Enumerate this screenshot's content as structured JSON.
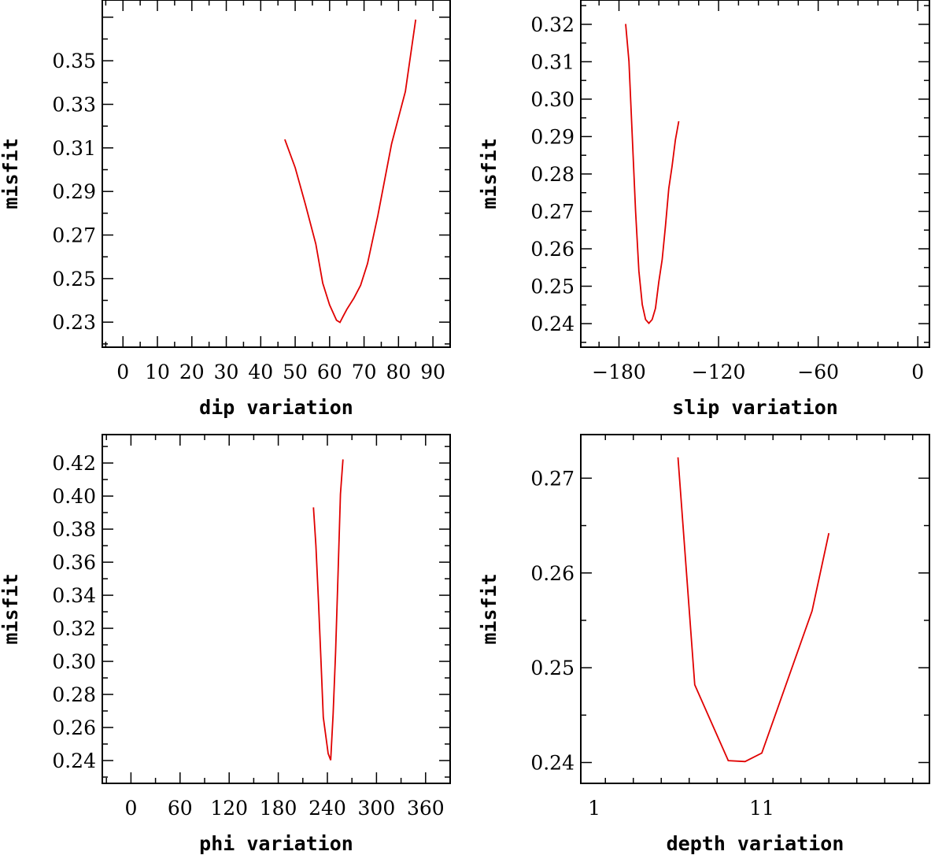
{
  "chart_data": [
    {
      "type": "line",
      "xlabel": "dip    variation",
      "ylabel": "misfit",
      "xlim": [
        -6,
        95
      ],
      "ylim": [
        0.2185,
        0.3779
      ],
      "xticks": [
        0,
        10,
        20,
        30,
        40,
        50,
        60,
        70,
        80,
        90
      ],
      "yticks": [
        0.23,
        0.25,
        0.27,
        0.29,
        0.31,
        0.33,
        0.35
      ],
      "ytick_labels": [
        "0.23",
        "0.25",
        "0.27",
        "0.29",
        "0.31",
        "0.33",
        "0.35"
      ],
      "series": [
        {
          "color": "#e00000",
          "x": [
            47,
            50,
            53,
            56,
            58,
            60,
            62,
            63,
            64,
            65,
            67,
            69,
            71,
            74,
            78,
            82,
            85
          ],
          "y": [
            0.3139,
            0.3009,
            0.2839,
            0.2659,
            0.2479,
            0.2379,
            0.2309,
            0.2299,
            0.2329,
            0.2359,
            0.2409,
            0.2469,
            0.2569,
            0.2789,
            0.3119,
            0.3359,
            0.3689
          ]
        }
      ]
    },
    {
      "type": "line",
      "xlabel": "slip   variation",
      "ylabel": "misfit",
      "xlim": [
        -203,
        7
      ],
      "ylim": [
        0.2337,
        0.3265
      ],
      "xticks": [
        -180,
        -120,
        -60,
        0
      ],
      "xtick_labels": [
        "−180",
        "−120",
        "−60",
        "0"
      ],
      "yticks": [
        0.24,
        0.25,
        0.26,
        0.27,
        0.28,
        0.29,
        0.3,
        0.31,
        0.32
      ],
      "ytick_labels": [
        "0.24",
        "0.25",
        "0.26",
        "0.27",
        "0.28",
        "0.29",
        "0.30",
        "0.31",
        "0.32"
      ],
      "series": [
        {
          "color": "#e00000",
          "x": [
            -176,
            -174,
            -172,
            -170,
            -168,
            -166,
            -164,
            -162,
            -160,
            -158,
            -156,
            -154,
            -152,
            -150,
            -148,
            -146,
            -144
          ],
          "y": [
            0.3201,
            0.3101,
            0.2901,
            0.2701,
            0.2541,
            0.2451,
            0.2411,
            0.2401,
            0.2411,
            0.2441,
            0.2511,
            0.2571,
            0.2661,
            0.2761,
            0.2821,
            0.2891,
            0.2941
          ]
        }
      ]
    },
    {
      "type": "line",
      "xlabel": "phi    variation",
      "ylabel": "misfit",
      "xlim": [
        -35,
        390
      ],
      "ylim": [
        0.2262,
        0.4372
      ],
      "xticks": [
        0,
        60,
        120,
        180,
        240,
        300,
        360
      ],
      "yticks": [
        0.24,
        0.26,
        0.28,
        0.3,
        0.32,
        0.34,
        0.36,
        0.38,
        0.4,
        0.42
      ],
      "ytick_labels": [
        "0.24",
        "0.26",
        "0.28",
        "0.30",
        "0.32",
        "0.34",
        "0.36",
        "0.38",
        "0.40",
        "0.42"
      ],
      "series": [
        {
          "color": "#e00000",
          "x": [
            223,
            226,
            229,
            232,
            235,
            238,
            241,
            244,
            247,
            250,
            253,
            256,
            259
          ],
          "y": [
            0.3932,
            0.3702,
            0.3372,
            0.3022,
            0.2662,
            0.2552,
            0.2442,
            0.2402,
            0.2682,
            0.3052,
            0.3522,
            0.4012,
            0.4222
          ]
        }
      ]
    },
    {
      "type": "line",
      "xlabel": "depth  variation",
      "ylabel": "misfit",
      "xlim": [
        0.2,
        21
      ],
      "ylim": [
        0.2378,
        0.2746
      ],
      "xticks": [
        1,
        11
      ],
      "yticks": [
        0.24,
        0.25,
        0.26,
        0.27
      ],
      "ytick_labels": [
        "0.24",
        "0.25",
        "0.26",
        "0.27"
      ],
      "series": [
        {
          "color": "#e00000",
          "x": [
            6,
            7,
            8,
            9,
            10,
            11,
            12,
            13,
            14,
            15
          ],
          "y": [
            0.2722,
            0.2482,
            0.2442,
            0.2402,
            0.2401,
            0.241,
            0.246,
            0.251,
            0.256,
            0.2642
          ]
        }
      ]
    }
  ]
}
